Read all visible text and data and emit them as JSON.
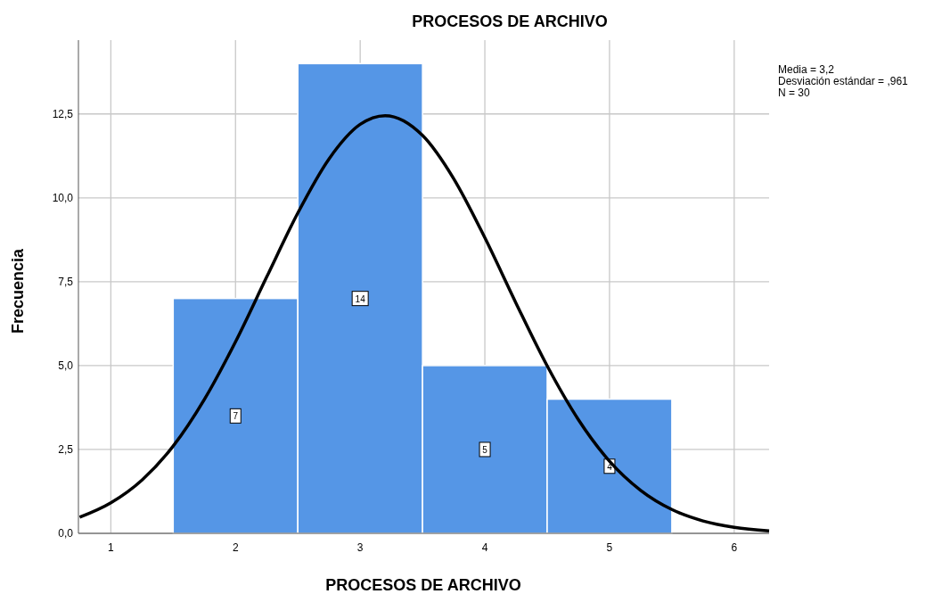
{
  "chart_data": {
    "type": "histogram",
    "title": "PROCESOS DE ARCHIVO",
    "xlabel": "PROCESOS DE ARCHIVO",
    "ylabel": "Frecuencia",
    "annotations": [
      "Media = 3,2",
      "Desviación estándar = ,961",
      "N = 30"
    ],
    "bins": [
      1.5,
      2.5,
      3.5,
      4.5,
      5.5
    ],
    "series": [
      {
        "color": "#5596e6",
        "values": [
          7,
          14,
          5,
          4
        ],
        "value_labels": [
          "7",
          "14",
          "5",
          "4"
        ]
      },
      {
        "type": "line",
        "color": "#000000",
        "x": [
          0.75,
          1,
          1.25,
          1.5,
          1.75,
          2,
          2.25,
          2.5,
          2.75,
          3,
          3.2,
          3.5,
          3.75,
          4,
          4.25,
          4.5,
          4.75,
          5,
          5.25,
          5.5,
          5.75,
          6,
          6.28
        ],
        "values": [
          0.48,
          0.91,
          1.59,
          2.6,
          3.99,
          5.71,
          7.64,
          9.55,
          11.16,
          12.19,
          12.45,
          11.86,
          10.57,
          8.81,
          6.86,
          4.99,
          3.39,
          2.15,
          1.28,
          0.71,
          0.37,
          0.18,
          0.07
        ]
      }
    ],
    "xlim": [
      0.74,
      6.28
    ],
    "xticks": [
      1,
      2,
      3,
      4,
      5,
      6
    ],
    "ylim": [
      0,
      14.7
    ],
    "yticks": [
      {
        "value": 0,
        "label": "0,0"
      },
      {
        "value": 2.5,
        "label": "2,5"
      },
      {
        "value": 5,
        "label": "5,0"
      },
      {
        "value": 7.5,
        "label": "7,5"
      },
      {
        "value": 10,
        "label": "10,0"
      },
      {
        "value": 12.5,
        "label": "12,5"
      }
    ],
    "grid": true,
    "line_style": "solid"
  }
}
